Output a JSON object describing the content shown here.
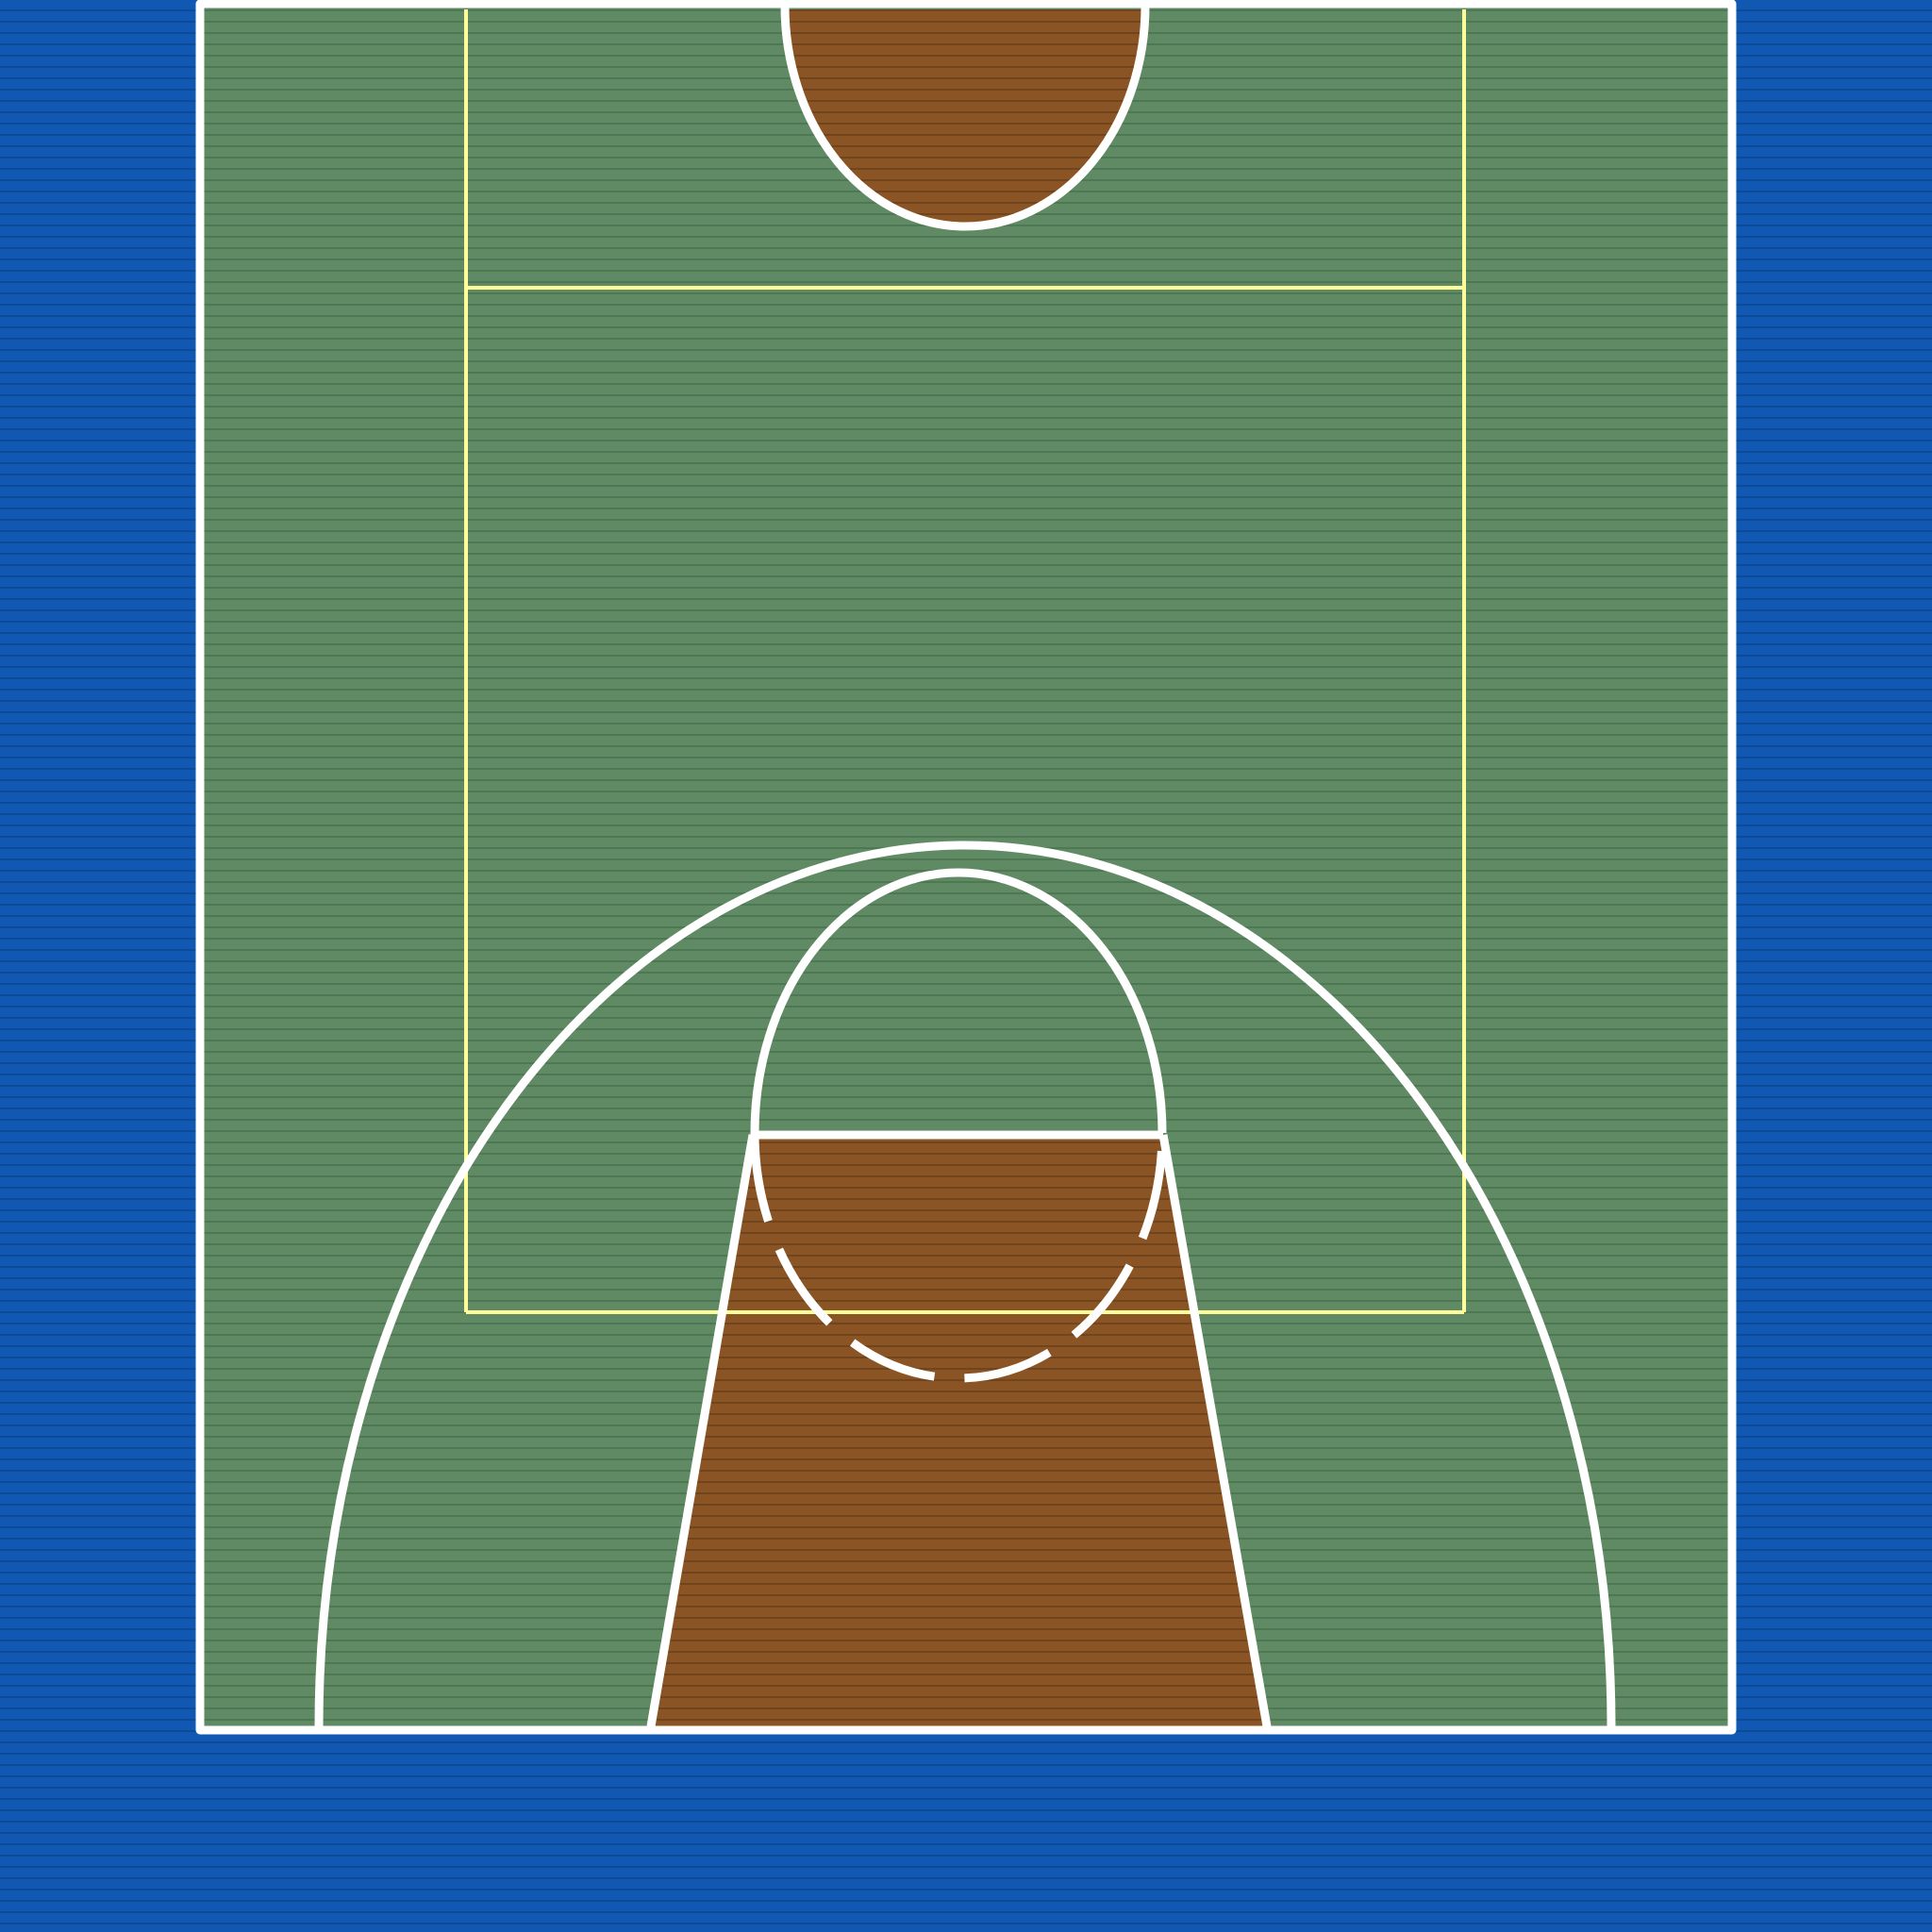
{
  "scene": {
    "kind": "basketball half-court top view",
    "surface": "wood planks",
    "colors": {
      "surround": "#1058b2",
      "surround_plank_line": "#0a4a98",
      "court": "#5f8a64",
      "court_plank_line": "#4c7452",
      "paint": "#8a5424",
      "paint_plank_line": "#6f421c",
      "line_white": "#ffffff",
      "line_yellow": "#ffff9a"
    }
  }
}
